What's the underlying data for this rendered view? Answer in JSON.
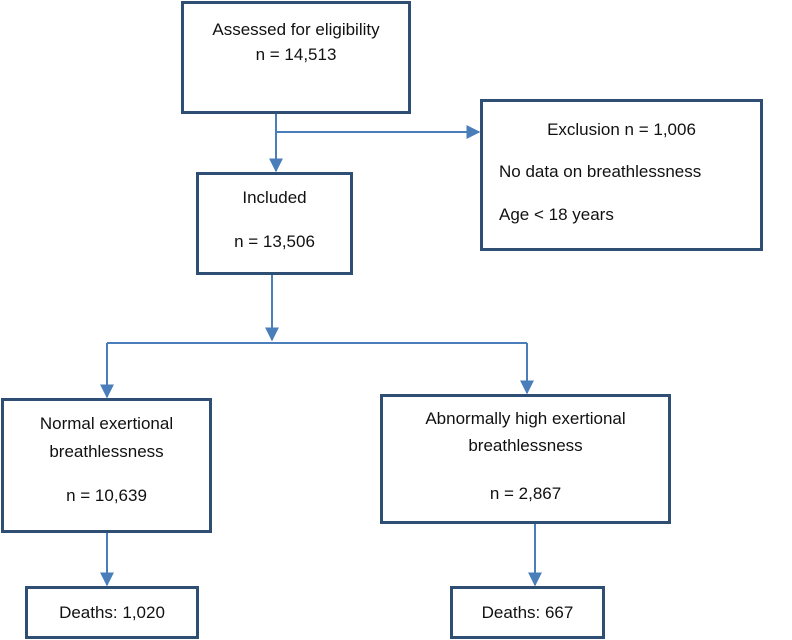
{
  "flowchart": {
    "assessed": {
      "title": "Assessed for eligibility",
      "count": "n = 14,513"
    },
    "exclusion": {
      "title": "Exclusion n = 1,006",
      "reasons": [
        "No data on breathlessness",
        "Age < 18 years"
      ]
    },
    "included": {
      "title": "Included",
      "count": "n = 13,506"
    },
    "normal": {
      "title_line1": "Normal exertional",
      "title_line2": "breathlessness",
      "count": "n = 10,639",
      "deaths": "Deaths: 1,020"
    },
    "abnormal": {
      "title_line1": "Abnormally high exertional",
      "title_line2": "breathlessness",
      "count": "n = 2,867",
      "deaths": "Deaths: 667"
    }
  },
  "colors": {
    "box_border": "#2f4e74",
    "arrow": "#4a7ebb",
    "text": "#111111"
  }
}
